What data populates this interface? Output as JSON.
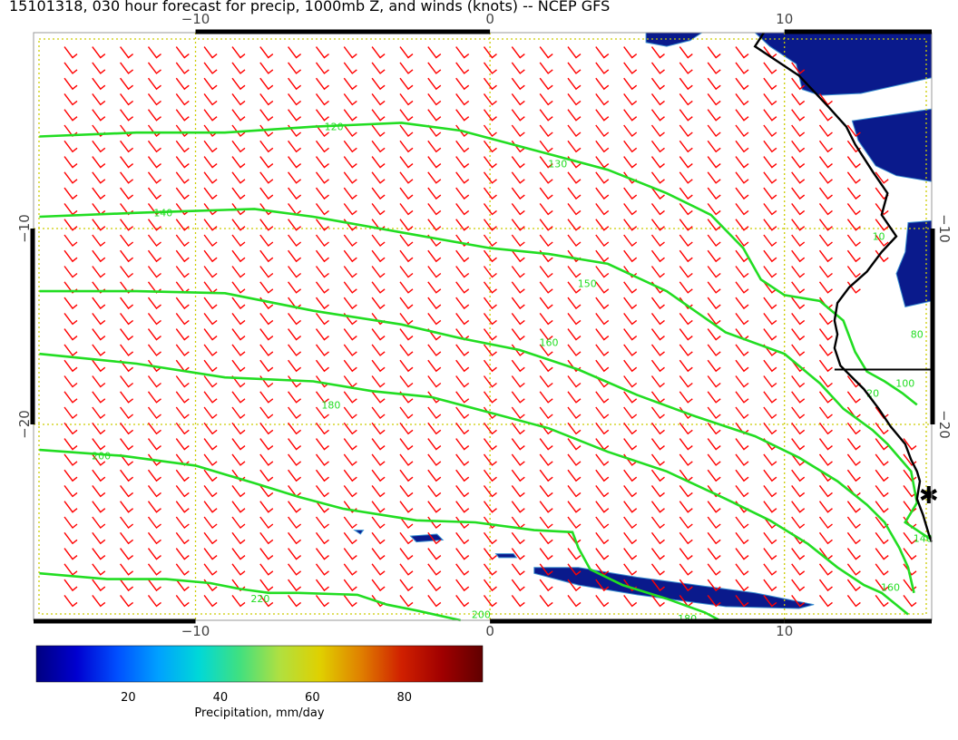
{
  "title": "15101318, 030 hour forecast for precip, 1000mb Z, and winds (knots) -- NCEP GFS",
  "axes": {
    "x_ticks": [
      {
        "value": -10,
        "label": "−10"
      },
      {
        "value": 0,
        "label": "0"
      },
      {
        "value": 10,
        "label": "10"
      }
    ],
    "y_ticks": [
      {
        "value": -10,
        "label": "−10"
      },
      {
        "value": -20,
        "label": "−20"
      }
    ],
    "x_range": [
      -15.5,
      15
    ],
    "y_range": [
      -30,
      0
    ]
  },
  "colors": {
    "contour": "#22dd22",
    "barb": "#ff0000",
    "grid": "#cccc00",
    "coast": "#000000",
    "precip_low": "#0a1a8c",
    "precip_mid": "#3a8fd0"
  },
  "contours": [
    {
      "value": 120,
      "label": "120",
      "points": [
        [
          -15.3,
          -5.3
        ],
        [
          -12,
          -5.1
        ],
        [
          -9,
          -5.1
        ],
        [
          -6,
          -4.8
        ],
        [
          -3,
          -4.6
        ],
        [
          -1,
          -5.0
        ],
        [
          0,
          -5.4
        ],
        [
          2,
          -6.2
        ],
        [
          4,
          -7.0
        ],
        [
          6,
          -8.2
        ],
        [
          7.5,
          -9.3
        ],
        [
          8.6,
          -11.0
        ],
        [
          9.2,
          -12.6
        ],
        [
          10,
          -13.4
        ],
        [
          11.2,
          -13.7
        ],
        [
          12,
          -14.7
        ],
        [
          12.4,
          -16.3
        ],
        [
          12.8,
          -17.3
        ],
        [
          13.4,
          -17.8
        ],
        [
          14,
          -18.4
        ],
        [
          14.5,
          -19.0
        ]
      ],
      "label_at": [
        -5.3,
        -4.8
      ]
    },
    {
      "value": 130,
      "label": "130",
      "points": [],
      "label_at": [
        2.3,
        -6.7
      ]
    },
    {
      "value": 140,
      "label": "140",
      "points": [
        [
          -15.3,
          -9.4
        ],
        [
          -12,
          -9.2
        ],
        [
          -10,
          -9.1
        ],
        [
          -8,
          -9.0
        ],
        [
          -6,
          -9.4
        ],
        [
          -3,
          -10.2
        ],
        [
          0,
          -11.0
        ],
        [
          2,
          -11.3
        ],
        [
          4,
          -11.8
        ],
        [
          6,
          -13.2
        ],
        [
          8,
          -15.3
        ],
        [
          10,
          -16.4
        ],
        [
          11.2,
          -17.9
        ],
        [
          12,
          -19.2
        ],
        [
          13,
          -20.3
        ],
        [
          13.5,
          -21.0
        ],
        [
          14.3,
          -22.4
        ],
        [
          14.5,
          -24.0
        ],
        [
          14.1,
          -25.0
        ],
        [
          15,
          -25.9
        ]
      ],
      "label_at": [
        -11.1,
        -9.2
      ]
    },
    {
      "value": 150,
      "label": "150",
      "points": [],
      "label_at": [
        3.3,
        -12.8
      ]
    },
    {
      "value": 160,
      "label": "160",
      "points": [
        [
          -15.3,
          -13.2
        ],
        [
          -12,
          -13.2
        ],
        [
          -9,
          -13.3
        ],
        [
          -6,
          -14.2
        ],
        [
          -3,
          -14.9
        ],
        [
          -1,
          -15.6
        ],
        [
          1,
          -16.2
        ],
        [
          3,
          -17.2
        ],
        [
          5,
          -18.5
        ],
        [
          7,
          -19.6
        ],
        [
          9,
          -20.6
        ],
        [
          10.5,
          -21.7
        ],
        [
          11.8,
          -22.9
        ],
        [
          12.8,
          -24.1
        ],
        [
          13.4,
          -25.0
        ],
        [
          13.9,
          -26.3
        ],
        [
          14.2,
          -27.3
        ],
        [
          14.4,
          -28.6
        ]
      ],
      "label_at": [
        2.0,
        -15.8
      ]
    },
    {
      "value": 180,
      "label": "180",
      "points": [
        [
          -15.3,
          -16.4
        ],
        [
          -12,
          -16.9
        ],
        [
          -9,
          -17.6
        ],
        [
          -6,
          -17.8
        ],
        [
          -4,
          -18.3
        ],
        [
          -2,
          -18.6
        ],
        [
          0,
          -19.4
        ],
        [
          2,
          -20.2
        ],
        [
          4,
          -21.4
        ],
        [
          6,
          -22.4
        ],
        [
          8,
          -23.8
        ],
        [
          9.5,
          -24.9
        ],
        [
          10.8,
          -26.1
        ],
        [
          11.8,
          -27.3
        ],
        [
          12.7,
          -28.2
        ],
        [
          13.3,
          -28.6
        ],
        [
          14.2,
          -29.7
        ]
      ],
      "label_at": [
        -5.4,
        -19.0
      ]
    },
    {
      "value": 200,
      "label": "200",
      "points": [
        [
          -15.3,
          -21.3
        ],
        [
          -12.5,
          -21.6
        ],
        [
          -10,
          -22.1
        ],
        [
          -8,
          -23.0
        ],
        [
          -6.5,
          -23.7
        ],
        [
          -5,
          -24.3
        ],
        [
          -2.5,
          -24.9
        ],
        [
          -0.5,
          -25.0
        ],
        [
          1.5,
          -25.4
        ],
        [
          2.8,
          -25.5
        ],
        [
          3.0,
          -26.3
        ],
        [
          3.4,
          -27.4
        ],
        [
          4.5,
          -28.2
        ],
        [
          6,
          -28.9
        ],
        [
          7.3,
          -29.6
        ],
        [
          7.8,
          -30.0
        ]
      ],
      "label_at": [
        -13.2,
        -21.6
      ]
    },
    {
      "value": 220,
      "label": "220",
      "points": [
        [
          -15.3,
          -27.6
        ],
        [
          -13,
          -27.9
        ],
        [
          -11,
          -27.9
        ],
        [
          -9.5,
          -28.1
        ],
        [
          -8.5,
          -28.4
        ],
        [
          -7.5,
          -28.6
        ],
        [
          -6.5,
          -28.6
        ],
        [
          -4.5,
          -28.7
        ],
        [
          -3.5,
          -29.2
        ],
        [
          -2.5,
          -29.5
        ],
        [
          -1.0,
          -30.0
        ]
      ],
      "label_at": [
        -7.8,
        -28.9
      ]
    },
    {
      "value": 200,
      "label": "200",
      "points": [
        [
          -1.0,
          -30.0
        ]
      ],
      "label_at": [
        -0.3,
        -29.7
      ]
    },
    {
      "value": 180,
      "label": "180",
      "points": [],
      "label_at": [
        6.7,
        -29.9
      ]
    }
  ],
  "coast_labels": [
    {
      "label": "10",
      "at": [
        13.2,
        -10.4
      ]
    },
    {
      "label": "80",
      "at": [
        14.5,
        -15.4
      ]
    },
    {
      "label": "100",
      "at": [
        14.1,
        -17.9
      ]
    },
    {
      "label": "20",
      "at": [
        13.0,
        -18.4
      ]
    },
    {
      "label": "140",
      "at": [
        14.7,
        -25.8
      ]
    },
    {
      "label": "160",
      "at": [
        13.6,
        -28.3
      ]
    }
  ],
  "colorbar": {
    "label": "Precipitation, mm/day",
    "min": 0,
    "max": 97,
    "ticks": [
      {
        "value": 20,
        "label": "20"
      },
      {
        "value": 40,
        "label": "40"
      },
      {
        "value": 60,
        "label": "60"
      },
      {
        "value": 80,
        "label": "80"
      }
    ],
    "stops": [
      "#000080",
      "#0000d0",
      "#0050ff",
      "#00a0ff",
      "#00d8d8",
      "#40e080",
      "#b0e040",
      "#e0d000",
      "#e08000",
      "#d02000",
      "#a00000",
      "#600000"
    ]
  },
  "precip_patches": [
    {
      "name": "southern-band",
      "points": [
        [
          1.5,
          -27.3
        ],
        [
          3,
          -27.3
        ],
        [
          5,
          -27.8
        ],
        [
          7,
          -28.2
        ],
        [
          9,
          -28.6
        ],
        [
          11,
          -29.2
        ],
        [
          10.5,
          -29.4
        ],
        [
          8,
          -29.3
        ],
        [
          5,
          -28.7
        ],
        [
          3,
          -28.2
        ],
        [
          1.5,
          -27.6
        ]
      ]
    },
    {
      "name": "small-blob-a",
      "points": [
        [
          -2.7,
          -25.7
        ],
        [
          -1.8,
          -25.6
        ],
        [
          -1.6,
          -25.9
        ],
        [
          -2.5,
          -26.0
        ]
      ]
    },
    {
      "name": "small-blob-b",
      "points": [
        [
          0.2,
          -26.6
        ],
        [
          0.8,
          -26.6
        ],
        [
          0.9,
          -26.8
        ],
        [
          0.3,
          -26.8
        ]
      ]
    },
    {
      "name": "small-blob-c",
      "points": [
        [
          -4.6,
          -25.4
        ],
        [
          -4.3,
          -25.4
        ],
        [
          -4.4,
          -25.6
        ]
      ]
    },
    {
      "name": "north-cap",
      "points": [
        [
          5.3,
          0
        ],
        [
          7.2,
          0
        ],
        [
          6.8,
          -0.4
        ],
        [
          6.0,
          -0.7
        ],
        [
          5.3,
          -0.5
        ]
      ]
    },
    {
      "name": "north-east-a",
      "points": [
        [
          9,
          0
        ],
        [
          15,
          0
        ],
        [
          15,
          -2.3
        ],
        [
          12.6,
          -3.1
        ],
        [
          11.2,
          -3.2
        ],
        [
          10.6,
          -2.9
        ],
        [
          10.4,
          -1.6
        ],
        [
          9.5,
          -0.7
        ]
      ]
    },
    {
      "name": "north-east-b",
      "points": [
        [
          12.3,
          -4.5
        ],
        [
          15,
          -3.9
        ],
        [
          15,
          -7.6
        ],
        [
          13.8,
          -7.3
        ],
        [
          13.1,
          -6.8
        ],
        [
          12.5,
          -5.5
        ]
      ]
    },
    {
      "name": "east-mid",
      "points": [
        [
          14.2,
          -9.7
        ],
        [
          15,
          -9.6
        ],
        [
          15,
          -13.7
        ],
        [
          14.1,
          -14.0
        ],
        [
          13.8,
          -12.3
        ],
        [
          14.1,
          -11.2
        ]
      ]
    }
  ],
  "coast": [
    [
      9.3,
      0
    ],
    [
      9.0,
      -0.7
    ],
    [
      9.6,
      -1.3
    ],
    [
      10.5,
      -2.2
    ],
    [
      11.0,
      -3.0
    ],
    [
      11.5,
      -3.8
    ],
    [
      12.1,
      -4.8
    ],
    [
      12.4,
      -5.7
    ],
    [
      13.0,
      -7.1
    ],
    [
      13.5,
      -8.2
    ],
    [
      13.3,
      -9.3
    ],
    [
      13.8,
      -10.4
    ],
    [
      13.3,
      -11.2
    ],
    [
      12.8,
      -12.2
    ],
    [
      12.2,
      -13.0
    ],
    [
      11.8,
      -13.8
    ],
    [
      11.7,
      -14.7
    ],
    [
      11.8,
      -15.4
    ],
    [
      11.7,
      -16.1
    ],
    [
      11.9,
      -17.0
    ],
    [
      12.7,
      -18.2
    ],
    [
      13.2,
      -19.2
    ],
    [
      13.6,
      -20.1
    ],
    [
      14.1,
      -21.0
    ],
    [
      14.3,
      -21.8
    ],
    [
      14.5,
      -22.4
    ],
    [
      14.6,
      -22.9
    ],
    [
      14.5,
      -23.8
    ],
    [
      14.7,
      -24.6
    ],
    [
      14.9,
      -25.6
    ],
    [
      15.0,
      -26.0
    ]
  ],
  "border": [
    [
      11.7,
      -17.2
    ],
    [
      15,
      -17.2
    ]
  ],
  "barb_grid": {
    "x_start": -14.3,
    "x_end": 14.7,
    "dx": 0.95,
    "y_start": -1.0,
    "y_end": -29.6,
    "dy": 0.8
  },
  "station_marker": {
    "label": "✱",
    "at": [
      14.9,
      -23.6
    ]
  }
}
